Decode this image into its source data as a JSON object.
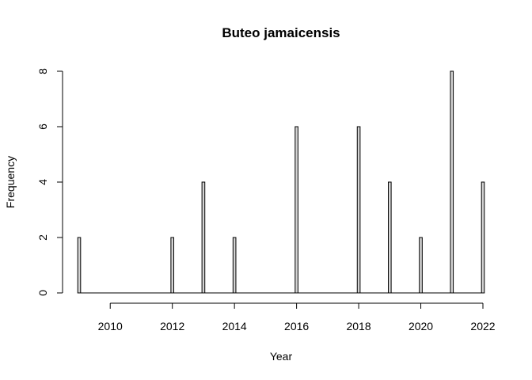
{
  "chart_data": {
    "type": "bar",
    "title": "Buteo jamaicensis",
    "xlabel": "Year",
    "ylabel": "Frequency",
    "x": [
      2009,
      2012,
      2013,
      2014,
      2016,
      2018,
      2019,
      2020,
      2021,
      2022
    ],
    "values": [
      2,
      2,
      4,
      2,
      6,
      6,
      4,
      2,
      8,
      4
    ],
    "xlim": [
      2009,
      2022
    ],
    "ylim": [
      0,
      8
    ],
    "xticks": [
      2010,
      2012,
      2014,
      2016,
      2018,
      2020,
      2022
    ],
    "yticks": [
      0,
      2,
      4,
      6,
      8
    ],
    "bar_color": "#d3d3d3",
    "grid": false,
    "legend": "none"
  }
}
